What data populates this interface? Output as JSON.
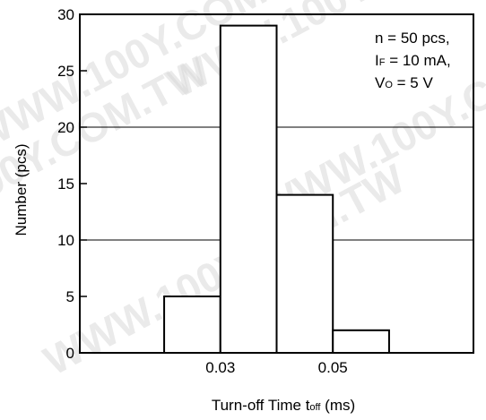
{
  "chart_data": {
    "type": "bar",
    "bins": [
      {
        "from": 0.02,
        "to": 0.03,
        "value": 5
      },
      {
        "from": 0.03,
        "to": 0.04,
        "value": 29
      },
      {
        "from": 0.04,
        "to": 0.05,
        "value": 14
      },
      {
        "from": 0.05,
        "to": 0.06,
        "value": 2
      }
    ],
    "xlim": [
      0.005,
      0.075
    ],
    "ylim": [
      0,
      30
    ],
    "yticks": [
      0,
      5,
      10,
      15,
      20,
      25,
      30
    ],
    "xtick_labels": [
      {
        "value": 0.03,
        "label": "0.03"
      },
      {
        "value": 0.05,
        "label": "0.05"
      }
    ],
    "ylabel": "Number  (pcs)",
    "xlabel": {
      "main": "Turn-off Time  t",
      "sub": "off",
      "unit": " (ms)"
    },
    "gridlines_y": [
      10,
      20
    ],
    "annotation": [
      {
        "main": "n = 50 pcs,",
        "sub": ""
      },
      {
        "main": "I",
        "sub": "F",
        "rest": " = 10 mA,"
      },
      {
        "main": "V",
        "sub": "O",
        "rest": " = 5 V"
      }
    ]
  },
  "watermark": "WWW.100Y.COM.TW"
}
